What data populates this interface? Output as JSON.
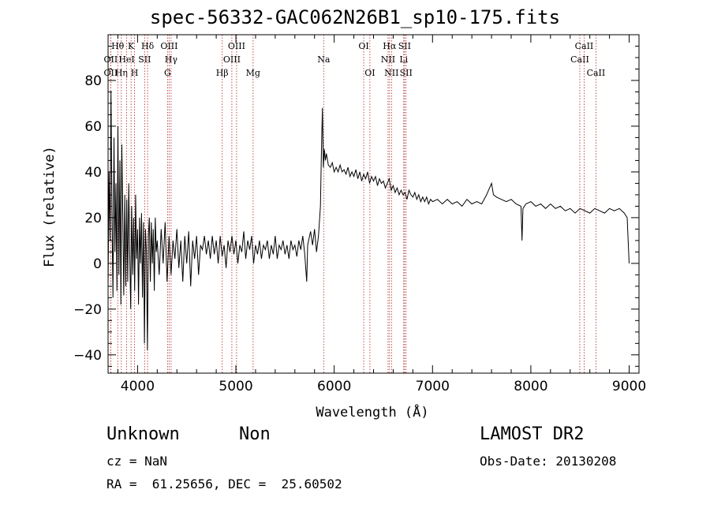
{
  "chart_data": {
    "type": "line",
    "title": "spec-56332-GAC062N26B1_sp10-175.fits",
    "xlabel": "Wavelength (Å)",
    "ylabel": "Flux (relative)",
    "xlim": [
      3700,
      9100
    ],
    "ylim": [
      -48,
      100
    ],
    "xticks": [
      4000,
      5000,
      6000,
      7000,
      8000,
      9000
    ],
    "yticks": [
      -40,
      -20,
      0,
      20,
      40,
      60,
      80
    ],
    "grid": false,
    "series": [
      {
        "points": [
          [
            3700,
            -10
          ],
          [
            3710,
            40
          ],
          [
            3720,
            10
          ],
          [
            3730,
            75
          ],
          [
            3740,
            20
          ],
          [
            3750,
            -15
          ],
          [
            3760,
            55
          ],
          [
            3770,
            5
          ],
          [
            3780,
            35
          ],
          [
            3790,
            -12
          ],
          [
            3800,
            60
          ],
          [
            3810,
            -5
          ],
          [
            3820,
            45
          ],
          [
            3830,
            -18
          ],
          [
            3840,
            52
          ],
          [
            3850,
            20
          ],
          [
            3860,
            -14
          ],
          [
            3870,
            30
          ],
          [
            3880,
            -10
          ],
          [
            3890,
            28
          ],
          [
            3900,
            -8
          ],
          [
            3910,
            35
          ],
          [
            3920,
            5
          ],
          [
            3930,
            -20
          ],
          [
            3940,
            25
          ],
          [
            3950,
            -5
          ],
          [
            3960,
            20
          ],
          [
            3970,
            -12
          ],
          [
            3980,
            30
          ],
          [
            3990,
            2
          ],
          [
            4000,
            15
          ],
          [
            4010,
            -18
          ],
          [
            4020,
            20
          ],
          [
            4030,
            0
          ],
          [
            4040,
            22
          ],
          [
            4050,
            -15
          ],
          [
            4060,
            18
          ],
          [
            4070,
            -35
          ],
          [
            4080,
            15
          ],
          [
            4090,
            5
          ],
          [
            4100,
            -38
          ],
          [
            4110,
            12
          ],
          [
            4120,
            20
          ],
          [
            4130,
            -8
          ],
          [
            4140,
            18
          ],
          [
            4150,
            0
          ],
          [
            4160,
            15
          ],
          [
            4170,
            -12
          ],
          [
            4180,
            20
          ],
          [
            4190,
            5
          ],
          [
            4200,
            10
          ],
          [
            4220,
            -5
          ],
          [
            4240,
            15
          ],
          [
            4260,
            0
          ],
          [
            4280,
            18
          ],
          [
            4300,
            -8
          ],
          [
            4320,
            12
          ],
          [
            4340,
            -5
          ],
          [
            4360,
            10
          ],
          [
            4380,
            2
          ],
          [
            4400,
            15
          ],
          [
            4420,
            -2
          ],
          [
            4440,
            10
          ],
          [
            4460,
            -8
          ],
          [
            4480,
            12
          ],
          [
            4500,
            0
          ],
          [
            4520,
            14
          ],
          [
            4540,
            -10
          ],
          [
            4560,
            10
          ],
          [
            4580,
            2
          ],
          [
            4600,
            12
          ],
          [
            4620,
            -5
          ],
          [
            4640,
            8
          ],
          [
            4660,
            6
          ],
          [
            4680,
            12
          ],
          [
            4700,
            4
          ],
          [
            4720,
            10
          ],
          [
            4740,
            2
          ],
          [
            4760,
            12
          ],
          [
            4780,
            4
          ],
          [
            4800,
            10
          ],
          [
            4820,
            0
          ],
          [
            4840,
            12
          ],
          [
            4860,
            3
          ],
          [
            4880,
            8
          ],
          [
            4900,
            -2
          ],
          [
            4920,
            10
          ],
          [
            4940,
            5
          ],
          [
            4960,
            12
          ],
          [
            4980,
            4
          ],
          [
            5000,
            10
          ],
          [
            5020,
            0
          ],
          [
            5040,
            8
          ],
          [
            5060,
            5
          ],
          [
            5080,
            14
          ],
          [
            5100,
            2
          ],
          [
            5120,
            10
          ],
          [
            5140,
            6
          ],
          [
            5160,
            12
          ],
          [
            5180,
            0
          ],
          [
            5200,
            8
          ],
          [
            5220,
            4
          ],
          [
            5240,
            10
          ],
          [
            5260,
            2
          ],
          [
            5280,
            8
          ],
          [
            5300,
            6
          ],
          [
            5320,
            10
          ],
          [
            5340,
            2
          ],
          [
            5360,
            8
          ],
          [
            5380,
            4
          ],
          [
            5400,
            12
          ],
          [
            5420,
            2
          ],
          [
            5440,
            8
          ],
          [
            5460,
            6
          ],
          [
            5480,
            10
          ],
          [
            5500,
            4
          ],
          [
            5520,
            8
          ],
          [
            5540,
            2
          ],
          [
            5560,
            10
          ],
          [
            5580,
            6
          ],
          [
            5600,
            8
          ],
          [
            5620,
            3
          ],
          [
            5640,
            10
          ],
          [
            5660,
            6
          ],
          [
            5680,
            12
          ],
          [
            5700,
            4
          ],
          [
            5720,
            -8
          ],
          [
            5730,
            8
          ],
          [
            5740,
            10
          ],
          [
            5760,
            14
          ],
          [
            5780,
            8
          ],
          [
            5800,
            15
          ],
          [
            5820,
            5
          ],
          [
            5840,
            12
          ],
          [
            5860,
            25
          ],
          [
            5870,
            48
          ],
          [
            5880,
            68
          ],
          [
            5890,
            42
          ],
          [
            5900,
            50
          ],
          [
            5910,
            45
          ],
          [
            5920,
            48
          ],
          [
            5940,
            43
          ],
          [
            5960,
            42
          ],
          [
            5980,
            44
          ],
          [
            6000,
            40
          ],
          [
            6020,
            42
          ],
          [
            6040,
            40
          ],
          [
            6060,
            43
          ],
          [
            6080,
            40
          ],
          [
            6100,
            41
          ],
          [
            6120,
            39
          ],
          [
            6140,
            42
          ],
          [
            6160,
            38
          ],
          [
            6180,
            40
          ],
          [
            6200,
            38
          ],
          [
            6220,
            41
          ],
          [
            6240,
            37
          ],
          [
            6260,
            40
          ],
          [
            6280,
            36
          ],
          [
            6300,
            39
          ],
          [
            6320,
            37
          ],
          [
            6340,
            40
          ],
          [
            6360,
            35
          ],
          [
            6380,
            38
          ],
          [
            6400,
            36
          ],
          [
            6420,
            38
          ],
          [
            6440,
            34
          ],
          [
            6460,
            37
          ],
          [
            6480,
            35
          ],
          [
            6500,
            36
          ],
          [
            6520,
            33
          ],
          [
            6540,
            35
          ],
          [
            6560,
            37
          ],
          [
            6580,
            32
          ],
          [
            6600,
            34
          ],
          [
            6620,
            31
          ],
          [
            6640,
            33
          ],
          [
            6660,
            30
          ],
          [
            6680,
            32
          ],
          [
            6700,
            30
          ],
          [
            6720,
            31
          ],
          [
            6740,
            28
          ],
          [
            6760,
            32
          ],
          [
            6780,
            30
          ],
          [
            6800,
            29
          ],
          [
            6820,
            31
          ],
          [
            6840,
            28
          ],
          [
            6860,
            30
          ],
          [
            6880,
            27
          ],
          [
            6900,
            29
          ],
          [
            6920,
            27
          ],
          [
            6940,
            29
          ],
          [
            6960,
            26
          ],
          [
            6980,
            28
          ],
          [
            7000,
            27
          ],
          [
            7050,
            28
          ],
          [
            7100,
            26
          ],
          [
            7150,
            28
          ],
          [
            7200,
            26
          ],
          [
            7250,
            27
          ],
          [
            7300,
            25
          ],
          [
            7350,
            28
          ],
          [
            7400,
            26
          ],
          [
            7450,
            27
          ],
          [
            7500,
            26
          ],
          [
            7550,
            30
          ],
          [
            7580,
            33
          ],
          [
            7600,
            35
          ],
          [
            7620,
            30
          ],
          [
            7650,
            29
          ],
          [
            7700,
            28
          ],
          [
            7750,
            27
          ],
          [
            7800,
            28
          ],
          [
            7850,
            26
          ],
          [
            7900,
            25
          ],
          [
            7910,
            10
          ],
          [
            7920,
            24
          ],
          [
            7950,
            26
          ],
          [
            8000,
            27
          ],
          [
            8050,
            25
          ],
          [
            8100,
            26
          ],
          [
            8150,
            24
          ],
          [
            8200,
            26
          ],
          [
            8250,
            24
          ],
          [
            8300,
            25
          ],
          [
            8350,
            23
          ],
          [
            8400,
            24
          ],
          [
            8450,
            22
          ],
          [
            8500,
            24
          ],
          [
            8550,
            23
          ],
          [
            8600,
            22
          ],
          [
            8650,
            24
          ],
          [
            8700,
            23
          ],
          [
            8750,
            22
          ],
          [
            8800,
            24
          ],
          [
            8850,
            23
          ],
          [
            8900,
            24
          ],
          [
            8950,
            22
          ],
          [
            8980,
            20
          ],
          [
            9000,
            0
          ]
        ]
      }
    ],
    "line_marks": [
      {
        "label": "OII",
        "x": 3727,
        "row": 2
      },
      {
        "label": "OII",
        "x": 3727,
        "row": 3
      },
      {
        "label": "Hθ",
        "x": 3798,
        "row": 1
      },
      {
        "label": "Hη",
        "x": 3835,
        "row": 3
      },
      {
        "label": "HeI",
        "x": 3889,
        "row": 2
      },
      {
        "label": "K",
        "x": 3934,
        "row": 1
      },
      {
        "label": "H",
        "x": 3969,
        "row": 3
      },
      {
        "label": "SII",
        "x": 4072,
        "row": 2
      },
      {
        "label": "Hδ",
        "x": 4102,
        "row": 1
      },
      {
        "label": "G",
        "x": 4305,
        "row": 3
      },
      {
        "label": "OIII",
        "x": 4321,
        "row": 1
      },
      {
        "label": "Hγ",
        "x": 4341,
        "row": 2
      },
      {
        "label": "Hβ",
        "x": 4861,
        "row": 3
      },
      {
        "label": "OIII",
        "x": 4959,
        "row": 2
      },
      {
        "label": "OIII",
        "x": 5007,
        "row": 1
      },
      {
        "label": "Mg",
        "x": 5175,
        "row": 3
      },
      {
        "label": "Na",
        "x": 5893,
        "row": 2
      },
      {
        "label": "OI",
        "x": 6300,
        "row": 1
      },
      {
        "label": "OI",
        "x": 6363,
        "row": 3
      },
      {
        "label": "NII",
        "x": 6548,
        "row": 2
      },
      {
        "label": "Hα",
        "x": 6563,
        "row": 1
      },
      {
        "label": "NII",
        "x": 6583,
        "row": 3
      },
      {
        "label": "Li",
        "x": 6707,
        "row": 2
      },
      {
        "label": "SII",
        "x": 6716,
        "row": 1
      },
      {
        "label": "SII",
        "x": 6731,
        "row": 3
      },
      {
        "label": "CaII",
        "x": 8498,
        "row": 2
      },
      {
        "label": "CaII",
        "x": 8542,
        "row": 1
      },
      {
        "label": "CaII",
        "x": 8662,
        "row": 3
      }
    ]
  },
  "info": {
    "class": "Unknown",
    "subclass": "Non",
    "survey": "LAMOST DR2",
    "cz": "cz = NaN",
    "obs_date": "Obs-Date: 20130208",
    "coords": "RA =  61.25656, DEC =  25.60502"
  }
}
